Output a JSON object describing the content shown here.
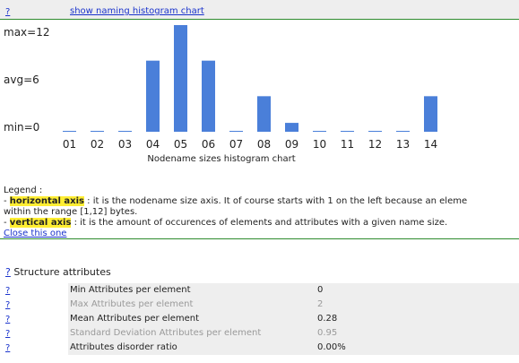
{
  "header": {
    "help": "?",
    "toggle": "show naming histogram chart"
  },
  "chart_data": {
    "type": "bar",
    "title": "",
    "xlabel": "Nodename sizes histogram chart",
    "ylabel": "",
    "categories": [
      "01",
      "02",
      "03",
      "04",
      "05",
      "06",
      "07",
      "08",
      "09",
      "10",
      "11",
      "12",
      "13",
      "14"
    ],
    "values": [
      0,
      0,
      0,
      8,
      12,
      8,
      0,
      4,
      1,
      0,
      0,
      0,
      0,
      4
    ],
    "ylim": [
      0,
      12
    ],
    "y_markers": [
      "max=12",
      "avg=6",
      "min=0"
    ],
    "bar_color": "#4a7fd9"
  },
  "legend": {
    "title": "Legend :",
    "h_prefix": "- ",
    "h_term": "horizontal axis",
    "h_text": " : it is the nodename size axis. It of course starts with 1 on the left because an eleme",
    "h_text2": "within the range [1,12] bytes.",
    "v_prefix": "- ",
    "v_term": "vertical axis",
    "v_text": " : it is the amount of occurences of elements and attributes with a given name size.",
    "close": "Close this one"
  },
  "structure": {
    "help": "?",
    "title": " Structure attributes",
    "rows": [
      {
        "help": "?",
        "label": "Min Attributes per element",
        "value": "0"
      },
      {
        "help": "?",
        "label": "Max Attributes per element",
        "value": "2"
      },
      {
        "help": "?",
        "label": "Mean Attributes per element",
        "value": "0.28"
      },
      {
        "help": "?",
        "label": "Standard Deviation Attributes per element",
        "value": "0.95"
      },
      {
        "help": "?",
        "label": "Attributes disorder ratio",
        "value": "0.00%"
      }
    ]
  }
}
